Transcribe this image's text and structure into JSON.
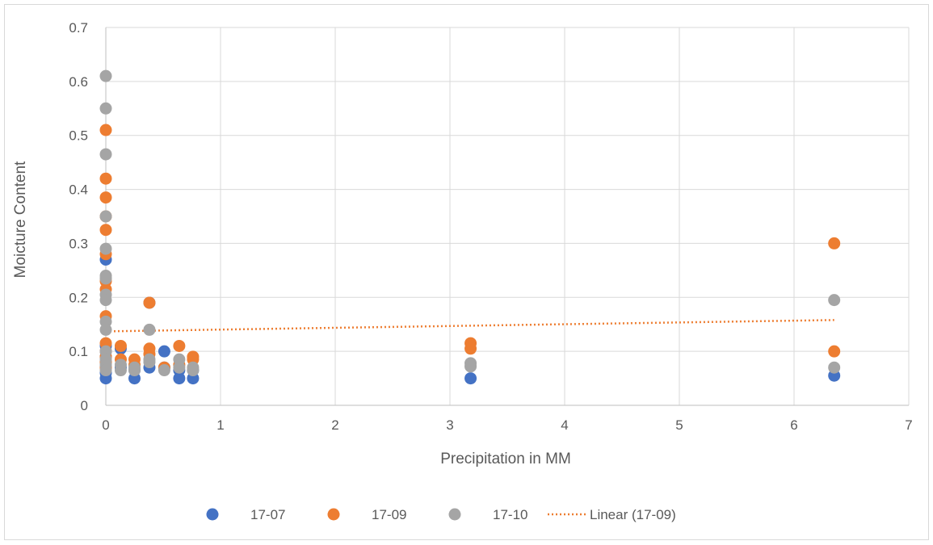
{
  "chart_data": {
    "type": "scatter",
    "title": "",
    "xlabel": "Precipitation in MM",
    "ylabel": "Moicture Content",
    "xlim": [
      0,
      7
    ],
    "ylim": [
      0,
      0.7
    ],
    "x_ticks": [
      "0",
      "1",
      "2",
      "3",
      "4",
      "5",
      "6",
      "7"
    ],
    "y_ticks": [
      "0",
      "0.1",
      "0.2",
      "0.3",
      "0.4",
      "0.5",
      "0.6",
      "0.7"
    ],
    "grid": true,
    "legend_position": "bottom",
    "series": [
      {
        "name": "17-07",
        "color": "#4472c4",
        "points": [
          [
            0,
            0.05
          ],
          [
            0,
            0.06
          ],
          [
            0,
            0.07
          ],
          [
            0,
            0.08
          ],
          [
            0,
            0.09
          ],
          [
            0,
            0.1
          ],
          [
            0,
            0.11
          ],
          [
            0,
            0.27
          ],
          [
            0.13,
            0.07
          ],
          [
            0.13,
            0.105
          ],
          [
            0.25,
            0.05
          ],
          [
            0.25,
            0.065
          ],
          [
            0.38,
            0.19
          ],
          [
            0.38,
            0.07
          ],
          [
            0.51,
            0.1
          ],
          [
            0.51,
            0.07
          ],
          [
            0.64,
            0.05
          ],
          [
            0.64,
            0.065
          ],
          [
            0.76,
            0.05
          ],
          [
            0.76,
            0.065
          ],
          [
            3.18,
            0.05
          ],
          [
            6.35,
            0.055
          ]
        ]
      },
      {
        "name": "17-09",
        "color": "#ed7d31",
        "points": [
          [
            0,
            0.51
          ],
          [
            0,
            0.42
          ],
          [
            0,
            0.385
          ],
          [
            0,
            0.35
          ],
          [
            0,
            0.325
          ],
          [
            0,
            0.28
          ],
          [
            0,
            0.23
          ],
          [
            0,
            0.215
          ],
          [
            0,
            0.165
          ],
          [
            0,
            0.115
          ],
          [
            0,
            0.1
          ],
          [
            0,
            0.09
          ],
          [
            0,
            0.08
          ],
          [
            0,
            0.07
          ],
          [
            0.13,
            0.11
          ],
          [
            0.13,
            0.085
          ],
          [
            0.25,
            0.085
          ],
          [
            0.25,
            0.075
          ],
          [
            0.38,
            0.19
          ],
          [
            0.38,
            0.105
          ],
          [
            0.38,
            0.095
          ],
          [
            0.51,
            0.07
          ],
          [
            0.64,
            0.11
          ],
          [
            0.64,
            0.075
          ],
          [
            0.76,
            0.09
          ],
          [
            0.76,
            0.085
          ],
          [
            3.18,
            0.115
          ],
          [
            3.18,
            0.105
          ],
          [
            6.35,
            0.3
          ],
          [
            6.35,
            0.1
          ]
        ]
      },
      {
        "name": "17-10",
        "color": "#a5a5a5",
        "points": [
          [
            0,
            0.61
          ],
          [
            0,
            0.55
          ],
          [
            0,
            0.465
          ],
          [
            0,
            0.35
          ],
          [
            0,
            0.29
          ],
          [
            0,
            0.24
          ],
          [
            0,
            0.235
          ],
          [
            0,
            0.205
          ],
          [
            0,
            0.195
          ],
          [
            0,
            0.155
          ],
          [
            0,
            0.14
          ],
          [
            0,
            0.1
          ],
          [
            0,
            0.085
          ],
          [
            0,
            0.075
          ],
          [
            0,
            0.065
          ],
          [
            0.13,
            0.075
          ],
          [
            0.13,
            0.065
          ],
          [
            0.25,
            0.07
          ],
          [
            0.25,
            0.065
          ],
          [
            0.38,
            0.14
          ],
          [
            0.38,
            0.085
          ],
          [
            0.38,
            0.08
          ],
          [
            0.51,
            0.065
          ],
          [
            0.64,
            0.085
          ],
          [
            0.64,
            0.07
          ],
          [
            0.76,
            0.07
          ],
          [
            0.76,
            0.065
          ],
          [
            3.18,
            0.078
          ],
          [
            3.18,
            0.072
          ],
          [
            6.35,
            0.195
          ],
          [
            6.35,
            0.07
          ]
        ]
      }
    ],
    "trendline": {
      "name": "Linear (17-09)",
      "color": "#ed7d31",
      "style": "dotted",
      "x": [
        0,
        6.35
      ],
      "y": [
        0.137,
        0.158
      ]
    }
  }
}
